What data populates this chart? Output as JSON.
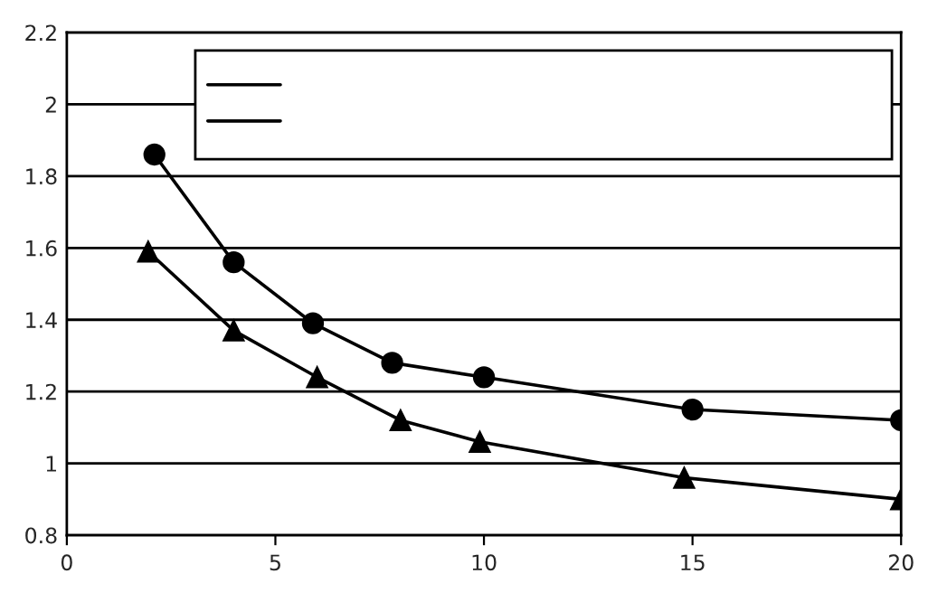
{
  "chart_data": {
    "type": "line",
    "xlim": [
      0,
      20
    ],
    "ylim": [
      0.8,
      2.2
    ],
    "xticks": [
      0,
      5,
      10,
      15,
      20
    ],
    "yticks": [
      0.8,
      1,
      1.2,
      1.4,
      1.6,
      1.8,
      2,
      2.2
    ],
    "grid": "y",
    "line_style": "solid",
    "series": [
      {
        "color": "#000000",
        "marker": "circle",
        "x": [
          2.1,
          4,
          5.9,
          7.8,
          10,
          15,
          20
        ],
        "values": [
          1.86,
          1.56,
          1.39,
          1.28,
          1.24,
          1.15,
          1.12
        ]
      },
      {
        "color": "#000000",
        "marker": "triangle",
        "x": [
          1.95,
          4,
          6,
          8,
          9.9,
          14.8,
          20
        ],
        "values": [
          1.59,
          1.37,
          1.24,
          1.12,
          1.06,
          0.96,
          0.9
        ]
      }
    ]
  }
}
